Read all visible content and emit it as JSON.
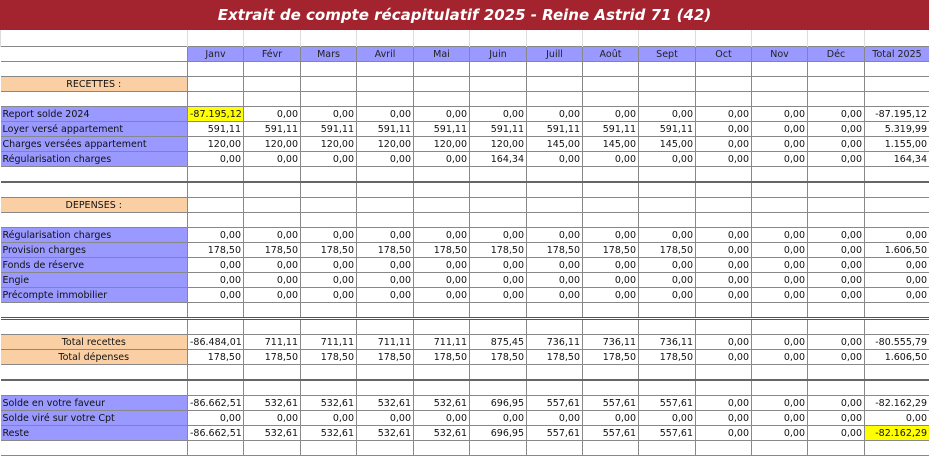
{
  "title": "Extrait de compte récapitulatif 2025 - Reine Astrid 71 (42)",
  "colors": {
    "title_bar": "#a3232f",
    "header": "#9999ff",
    "label_blue": "#9999ff",
    "section_peach": "#fbcfa4",
    "highlight": "#ffff00"
  },
  "columns": [
    "Janv",
    "Févr",
    "Mars",
    "Avril",
    "Mai",
    "Juin",
    "Juill",
    "Août",
    "Sept",
    "Oct",
    "Nov",
    "Déc",
    "Total  2025"
  ],
  "rows": [
    {
      "type": "blank"
    },
    {
      "type": "section",
      "label": "RECETTES :"
    },
    {
      "type": "blank"
    },
    {
      "type": "data",
      "label": "Report solde 2024",
      "highlight": [
        0
      ],
      "values": [
        "-87.195,12",
        "0,00",
        "0,00",
        "0,00",
        "0,00",
        "0,00",
        "0,00",
        "0,00",
        "0,00",
        "0,00",
        "0,00",
        "0,00",
        "-87.195,12"
      ]
    },
    {
      "type": "data",
      "label": "Loyer versé appartement",
      "values": [
        "591,11",
        "591,11",
        "591,11",
        "591,11",
        "591,11",
        "591,11",
        "591,11",
        "591,11",
        "591,11",
        "0,00",
        "0,00",
        "0,00",
        "5.319,99"
      ]
    },
    {
      "type": "data",
      "label": "Charges versées appartement",
      "values": [
        "120,00",
        "120,00",
        "120,00",
        "120,00",
        "120,00",
        "120,00",
        "145,00",
        "145,00",
        "145,00",
        "0,00",
        "0,00",
        "0,00",
        "1.155,00"
      ]
    },
    {
      "type": "data",
      "label": "Régularisation charges",
      "values": [
        "0,00",
        "0,00",
        "0,00",
        "0,00",
        "0,00",
        "164,34",
        "0,00",
        "0,00",
        "0,00",
        "0,00",
        "0,00",
        "0,00",
        "164,34"
      ]
    },
    {
      "type": "blank"
    },
    {
      "type": "blank",
      "border": "thick"
    },
    {
      "type": "section",
      "label": "DEPENSES :"
    },
    {
      "type": "blank"
    },
    {
      "type": "data",
      "label": "Régularisation charges",
      "values": [
        "0,00",
        "0,00",
        "0,00",
        "0,00",
        "0,00",
        "0,00",
        "0,00",
        "0,00",
        "0,00",
        "0,00",
        "0,00",
        "0,00",
        "0,00"
      ]
    },
    {
      "type": "data",
      "label": "Provision charges",
      "values": [
        "178,50",
        "178,50",
        "178,50",
        "178,50",
        "178,50",
        "178,50",
        "178,50",
        "178,50",
        "178,50",
        "0,00",
        "0,00",
        "0,00",
        "1.606,50"
      ]
    },
    {
      "type": "data",
      "label": "Fonds de réserve",
      "values": [
        "0,00",
        "0,00",
        "0,00",
        "0,00",
        "0,00",
        "0,00",
        "0,00",
        "0,00",
        "0,00",
        "0,00",
        "0,00",
        "0,00",
        "0,00"
      ]
    },
    {
      "type": "data",
      "label": "Engie",
      "values": [
        "0,00",
        "0,00",
        "0,00",
        "0,00",
        "0,00",
        "0,00",
        "0,00",
        "0,00",
        "0,00",
        "0,00",
        "0,00",
        "0,00",
        "0,00"
      ]
    },
    {
      "type": "data",
      "label": "Précompte immobilier",
      "values": [
        "0,00",
        "0,00",
        "0,00",
        "0,00",
        "0,00",
        "0,00",
        "0,00",
        "0,00",
        "0,00",
        "0,00",
        "0,00",
        "0,00",
        "0,00"
      ]
    },
    {
      "type": "blank"
    },
    {
      "type": "blank",
      "border": "double"
    },
    {
      "type": "total",
      "label": "Total recettes",
      "values": [
        "-86.484,01",
        "711,11",
        "711,11",
        "711,11",
        "711,11",
        "875,45",
        "736,11",
        "736,11",
        "736,11",
        "0,00",
        "0,00",
        "0,00",
        "-80.555,79"
      ]
    },
    {
      "type": "total",
      "label": "Total dépenses",
      "values": [
        "178,50",
        "178,50",
        "178,50",
        "178,50",
        "178,50",
        "178,50",
        "178,50",
        "178,50",
        "178,50",
        "0,00",
        "0,00",
        "0,00",
        "1.606,50"
      ]
    },
    {
      "type": "blank"
    },
    {
      "type": "blank",
      "border": "thick"
    },
    {
      "type": "data",
      "label": "Solde en votre faveur",
      "values": [
        "-86.662,51",
        "532,61",
        "532,61",
        "532,61",
        "532,61",
        "696,95",
        "557,61",
        "557,61",
        "557,61",
        "0,00",
        "0,00",
        "0,00",
        "-82.162,29"
      ]
    },
    {
      "type": "data",
      "label": "Solde viré sur votre Cpt",
      "values": [
        "0,00",
        "0,00",
        "0,00",
        "0,00",
        "0,00",
        "0,00",
        "0,00",
        "0,00",
        "0,00",
        "0,00",
        "0,00",
        "0,00",
        "0,00"
      ]
    },
    {
      "type": "data",
      "label": "Reste",
      "highlight": [
        12
      ],
      "values": [
        "-86.662,51",
        "532,61",
        "532,61",
        "532,61",
        "532,61",
        "696,95",
        "557,61",
        "557,61",
        "557,61",
        "0,00",
        "0,00",
        "0,00",
        "-82.162,29"
      ]
    },
    {
      "type": "blank"
    }
  ]
}
